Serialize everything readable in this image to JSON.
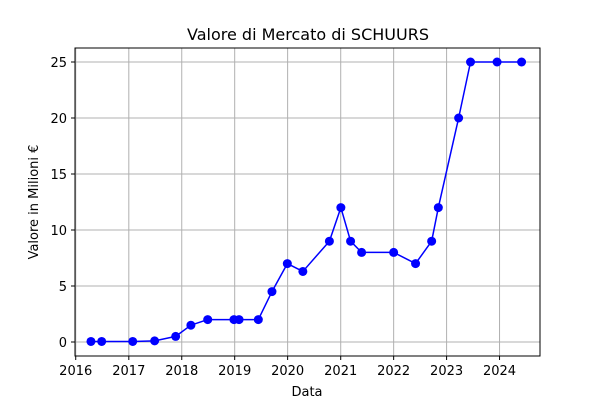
{
  "chart_data": {
    "type": "line",
    "title": "Valore di Mercato di SCHUURS",
    "xlabel": "Data",
    "ylabel": "Valore in Milioni €",
    "xlim": [
      "2015-12-27",
      "2024-10-06"
    ],
    "ylim": [
      -1.25,
      26.25
    ],
    "x_ticks": [
      {
        "value": "2016-01-01",
        "label": "2016"
      },
      {
        "value": "2017-01-01",
        "label": "2017"
      },
      {
        "value": "2018-01-01",
        "label": "2018"
      },
      {
        "value": "2019-01-01",
        "label": "2019"
      },
      {
        "value": "2020-01-01",
        "label": "2020"
      },
      {
        "value": "2021-01-01",
        "label": "2021"
      },
      {
        "value": "2022-01-01",
        "label": "2022"
      },
      {
        "value": "2023-01-01",
        "label": "2023"
      },
      {
        "value": "2024-01-01",
        "label": "2024"
      }
    ],
    "y_ticks": [
      {
        "value": 0,
        "label": "0"
      },
      {
        "value": 5,
        "label": "5"
      },
      {
        "value": 10,
        "label": "10"
      },
      {
        "value": 15,
        "label": "15"
      },
      {
        "value": 20,
        "label": "20"
      },
      {
        "value": 25,
        "label": "25"
      }
    ],
    "grid": true,
    "color": "#0000ff",
    "series": [
      {
        "points": [
          {
            "x": "2016-04-15",
            "y": 0.05
          },
          {
            "x": "2016-06-28",
            "y": 0.05
          },
          {
            "x": "2017-01-28",
            "y": 0.05
          },
          {
            "x": "2017-06-28",
            "y": 0.1
          },
          {
            "x": "2017-11-20",
            "y": 0.5
          },
          {
            "x": "2018-03-05",
            "y": 1.5
          },
          {
            "x": "2018-06-29",
            "y": 2.0
          },
          {
            "x": "2018-12-27",
            "y": 2.0
          },
          {
            "x": "2019-01-31",
            "y": 2.0
          },
          {
            "x": "2019-06-13",
            "y": 2.0
          },
          {
            "x": "2019-09-15",
            "y": 4.5
          },
          {
            "x": "2019-12-30",
            "y": 7.0
          },
          {
            "x": "2020-04-15",
            "y": 6.3
          },
          {
            "x": "2020-10-15",
            "y": 9.0
          },
          {
            "x": "2021-01-02",
            "y": 12.0
          },
          {
            "x": "2021-03-10",
            "y": 9.0
          },
          {
            "x": "2021-05-25",
            "y": 8.0
          },
          {
            "x": "2022-01-01",
            "y": 8.0
          },
          {
            "x": "2022-06-01",
            "y": 7.0
          },
          {
            "x": "2022-09-20",
            "y": 9.0
          },
          {
            "x": "2022-11-05",
            "y": 12.0
          },
          {
            "x": "2023-03-25",
            "y": 20.0
          },
          {
            "x": "2023-06-15",
            "y": 25.0
          },
          {
            "x": "2023-12-15",
            "y": 25.0
          },
          {
            "x": "2024-06-01",
            "y": 25.0
          }
        ]
      }
    ]
  }
}
